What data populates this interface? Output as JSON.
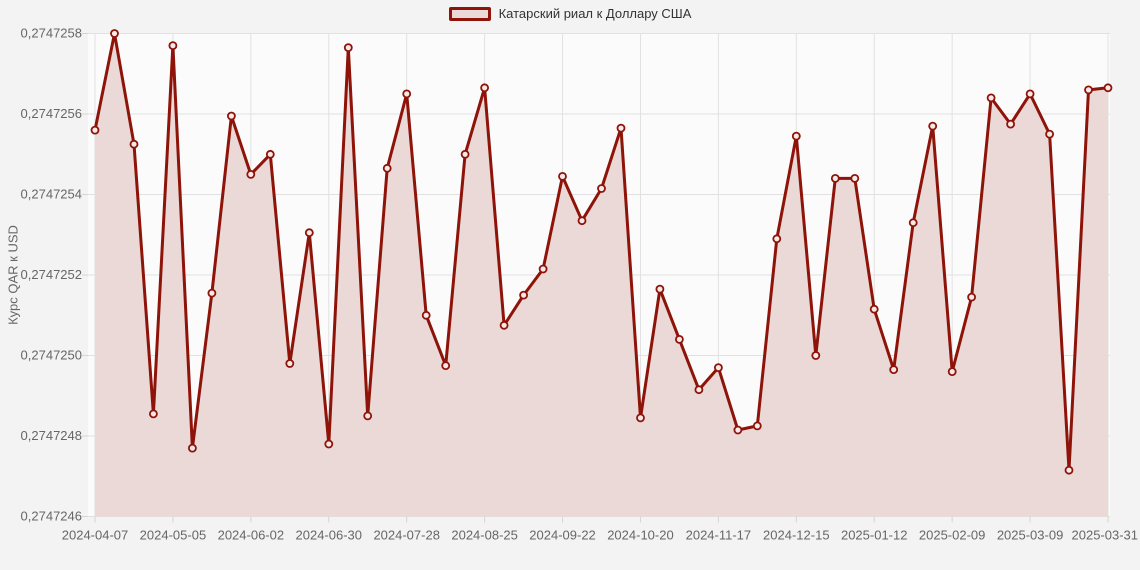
{
  "page": {
    "background": "#f3f3f3"
  },
  "colors": {
    "line": "#8e1309",
    "area_fill": "#ead9d6",
    "marker_fill": "#f7e9e7",
    "grid": "#e1e1e1",
    "tick": "#d5d5d5",
    "plot_background": "#fbfbfb",
    "page_background": "#f3f3f3",
    "axis_text": "#666666",
    "legend_text": "#333333"
  },
  "legend": {
    "label": "Катарский риал к Доллару США"
  },
  "chart_data": {
    "type": "area",
    "title": "",
    "xlabel": "",
    "ylabel": "Курс QAR к USD",
    "legend": [
      "Катарский риал к Доллару США"
    ],
    "legend_position": "top-center",
    "grid": true,
    "ylim": [
      0.2747246,
      0.2747258
    ],
    "ytick_labels": [
      "0,2747258",
      "0,2747256",
      "0,2747254",
      "0,2747252",
      "0,2747250",
      "0,2747248",
      "0,2747246"
    ],
    "ytick_values": [
      0.2747258,
      0.2747256,
      0.2747254,
      0.2747252,
      0.274725,
      0.2747248,
      0.2747246
    ],
    "xtick_labels": [
      "2024-04-07",
      "2024-05-05",
      "2024-06-02",
      "2024-06-30",
      "2024-07-28",
      "2024-08-25",
      "2024-09-22",
      "2024-10-20",
      "2024-11-17",
      "2024-12-15",
      "2025-01-12",
      "2025-02-09",
      "2025-03-09",
      "2025-03-31"
    ],
    "xtick_indices": [
      0,
      4,
      8,
      12,
      16,
      20,
      24,
      28,
      32,
      36,
      40,
      44,
      48,
      52
    ],
    "x": [
      "2024-04-07",
      "2024-04-14",
      "2024-04-21",
      "2024-04-28",
      "2024-05-05",
      "2024-05-12",
      "2024-05-19",
      "2024-05-26",
      "2024-06-02",
      "2024-06-09",
      "2024-06-16",
      "2024-06-23",
      "2024-06-30",
      "2024-07-07",
      "2024-07-14",
      "2024-07-21",
      "2024-07-28",
      "2024-08-04",
      "2024-08-11",
      "2024-08-18",
      "2024-08-25",
      "2024-09-01",
      "2024-09-08",
      "2024-09-15",
      "2024-09-22",
      "2024-09-29",
      "2024-10-06",
      "2024-10-13",
      "2024-10-20",
      "2024-10-27",
      "2024-11-03",
      "2024-11-10",
      "2024-11-17",
      "2024-11-24",
      "2024-12-01",
      "2024-12-08",
      "2024-12-15",
      "2024-12-22",
      "2024-12-29",
      "2025-01-05",
      "2025-01-12",
      "2025-01-19",
      "2025-01-26",
      "2025-02-02",
      "2025-02-09",
      "2025-02-16",
      "2025-02-23",
      "2025-03-02",
      "2025-03-09",
      "2025-03-16",
      "2025-03-23",
      "2025-03-30",
      "2025-03-31"
    ],
    "values": [
      0.27472556,
      0.2747258,
      0.274725525,
      0.274724855,
      0.27472577,
      0.27472477,
      0.274725155,
      0.274725595,
      0.27472545,
      0.2747255,
      0.27472498,
      0.274725305,
      0.27472478,
      0.274725765,
      0.27472485,
      0.274725465,
      0.27472565,
      0.2747251,
      0.274724975,
      0.2747255,
      0.274725665,
      0.274725075,
      0.27472515,
      0.274725215,
      0.274725445,
      0.274725335,
      0.274725415,
      0.274725565,
      0.274724845,
      0.274725165,
      0.27472504,
      0.274724915,
      0.27472497,
      0.274724815,
      0.274724825,
      0.27472529,
      0.274725545,
      0.274725,
      0.27472544,
      0.27472544,
      0.274725115,
      0.274724965,
      0.27472533,
      0.27472557,
      0.27472496,
      0.274725145,
      0.27472564,
      0.274725575,
      0.27472565,
      0.27472555,
      0.274724715,
      0.27472566,
      0.274725665
    ]
  }
}
